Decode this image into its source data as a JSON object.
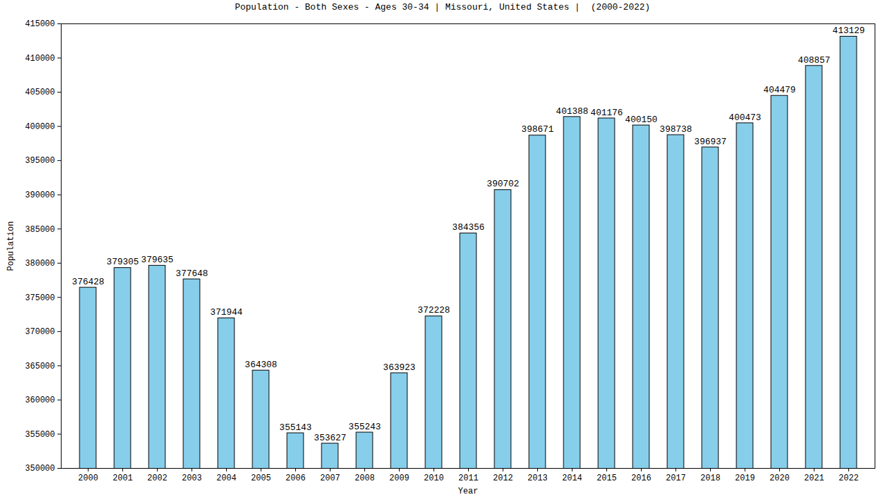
{
  "chart_data": {
    "type": "bar",
    "title": "Population - Both Sexes - Ages 30-34 | Missouri, United States |  (2000-2022)",
    "x_label": "Year",
    "y_label": "Population",
    "categories": [
      "2000",
      "2001",
      "2002",
      "2003",
      "2004",
      "2005",
      "2006",
      "2007",
      "2008",
      "2009",
      "2010",
      "2011",
      "2012",
      "2013",
      "2014",
      "2015",
      "2016",
      "2017",
      "2018",
      "2019",
      "2020",
      "2021",
      "2022"
    ],
    "values": [
      376428,
      379305,
      379635,
      377648,
      371944,
      364308,
      355143,
      353627,
      355243,
      363923,
      372228,
      384356,
      390702,
      398671,
      401388,
      401176,
      400150,
      398738,
      396937,
      400473,
      404479,
      408857,
      413129
    ],
    "color": "#87ceeb",
    "ylim": [
      350000,
      415000
    ],
    "yticks": [
      350000,
      355000,
      360000,
      365000,
      370000,
      375000,
      380000,
      385000,
      390000,
      395000,
      400000,
      405000,
      410000,
      415000
    ],
    "grid": false,
    "data_labels": true
  }
}
